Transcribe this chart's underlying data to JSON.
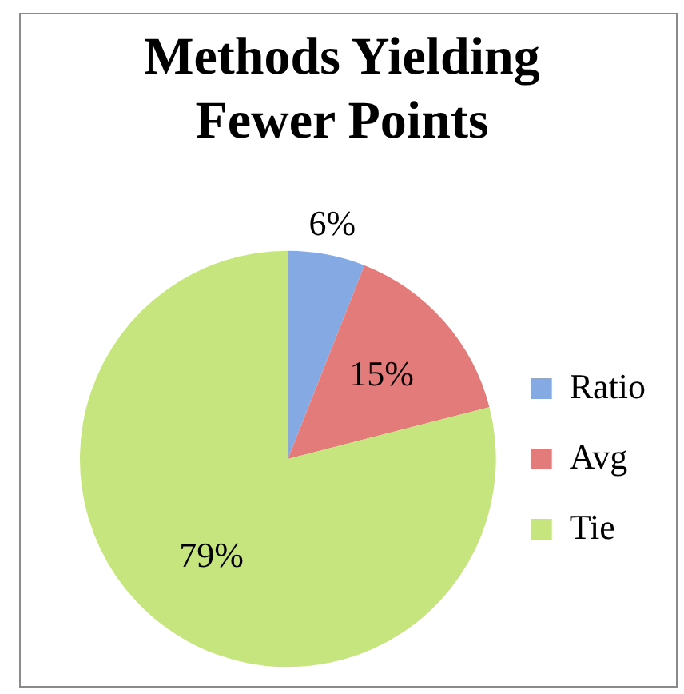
{
  "chart_data": {
    "type": "pie",
    "title": "Methods Yielding Fewer Points",
    "categories": [
      "Ratio",
      "Avg",
      "Tie"
    ],
    "values": [
      6,
      15,
      79
    ],
    "colors": [
      "#84a9e3",
      "#e47b7b",
      "#c6e57f"
    ],
    "value_labels": [
      "6%",
      "15%",
      "79%"
    ],
    "legend": "right"
  }
}
